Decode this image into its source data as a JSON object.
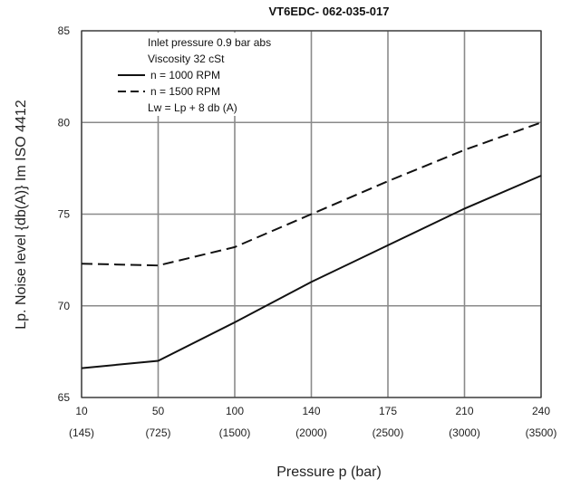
{
  "chart_data": {
    "type": "line",
    "title": "VT6EDC- 062-035-017",
    "xlabel": "Pressure p (bar)",
    "ylabel": "Lp. Noise level {db(A)} Im ISO 4412",
    "x_ticks": [
      "10",
      "50",
      "100",
      "140",
      "175",
      "210",
      "240"
    ],
    "x_ticks_secondary": [
      "(145)",
      "(725)",
      "(1500)",
      "(2000)",
      "(2500)",
      "(3000)",
      "(3500)"
    ],
    "y_ticks": [
      "65",
      "70",
      "75",
      "80",
      "85"
    ],
    "ylim": [
      65,
      85
    ],
    "grid": true,
    "legend": {
      "placement": "top-left",
      "lines": [
        {
          "text": "Inlet pressure     0.9 bar abs",
          "marker": "none"
        },
        {
          "text": "Viscosity     32 cSt",
          "marker": "none"
        },
        {
          "text": "n  = 1000 RPM",
          "marker": "solid"
        },
        {
          "text": "n  = 1500 RPM",
          "marker": "dashed"
        },
        {
          "text": "Lw  = Lp + 8 db (A)",
          "marker": "none"
        }
      ]
    },
    "series": [
      {
        "name": "n  = 1000 RPM",
        "style": "solid",
        "x": [
          10,
          50,
          100,
          140,
          175,
          210,
          240
        ],
        "y": [
          66.6,
          67.0,
          69.1,
          71.3,
          73.3,
          75.3,
          77.1
        ]
      },
      {
        "name": "n  = 1500 RPM",
        "style": "dashed",
        "x": [
          10,
          50,
          100,
          140,
          175,
          210,
          240
        ],
        "y": [
          72.3,
          72.2,
          73.2,
          75.0,
          76.8,
          78.5,
          80.0
        ]
      }
    ]
  }
}
